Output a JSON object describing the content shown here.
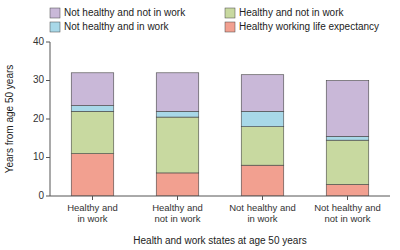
{
  "chart_data": {
    "type": "bar",
    "stacked": true,
    "x_label": "Health and work states at age 50 years",
    "y_label": "Years from age 50 years",
    "categories": [
      "Healthy and\nin work",
      "Healthy and\nnot in work",
      "Not healthy and\nin work",
      "Not healthy and\nnot in work"
    ],
    "series": [
      {
        "name": "Healthy working life expectancy",
        "color": "#F2A090",
        "values": [
          11.0,
          6.0,
          8.0,
          3.0
        ]
      },
      {
        "name": "Healthy and not in work",
        "color": "#C8D9A0",
        "values": [
          11.0,
          14.5,
          10.0,
          11.5
        ]
      },
      {
        "name": "Not healthy and in work",
        "color": "#A8D8E8",
        "values": [
          1.5,
          1.5,
          4.0,
          1.0
        ]
      },
      {
        "name": "Not healthy and not in work",
        "color": "#C9B8D8",
        "values": [
          8.5,
          10.0,
          9.5,
          14.5
        ]
      }
    ],
    "ylim": [
      0,
      40
    ],
    "yticks": [
      0,
      10,
      20,
      30,
      40
    ],
    "grid": false,
    "legend": "top"
  }
}
